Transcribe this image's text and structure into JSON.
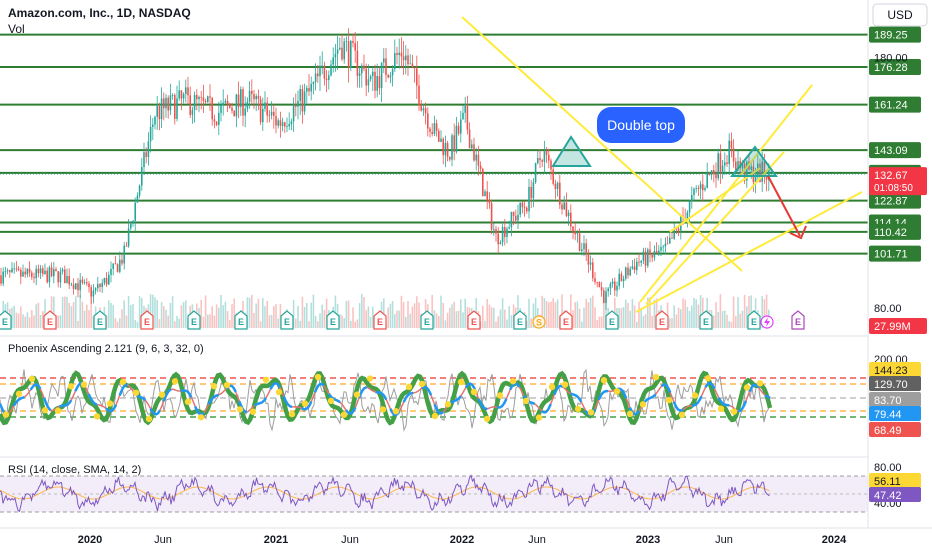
{
  "header": {
    "symbol_title": "Amazon.com, Inc., 1D, NASDAQ",
    "vol_label": "Vol",
    "currency_button": "USD"
  },
  "annotation": {
    "double_top_label": "Double top"
  },
  "colors": {
    "support_line": "#2e7d32",
    "trend_line": "#ffeb3b",
    "projection_arrow": "#e53935",
    "candle_up": "#26a69a",
    "candle_down": "#ef5350",
    "price_badge": "#f23645",
    "rsi_line": "#7e57c2",
    "rsi_band": "#ede7f6"
  },
  "chart_data": [
    {
      "type": "candlestick",
      "title": "Amazon.com, Inc., 1D, NASDAQ",
      "ylim": [
        78,
        195
      ],
      "x_ticks": [
        "2020",
        "Jun",
        "2021",
        "Jun",
        "2022",
        "Jun",
        "2023",
        "Jun",
        "2024"
      ],
      "support_levels": [
        189.25,
        176.28,
        161.24,
        143.09,
        133.97,
        122.87,
        114.14,
        110.42,
        101.71
      ],
      "last_price": 132.67,
      "countdown": "01:08:50",
      "axis_labels": [
        "180.00",
        "80.00"
      ],
      "volume_label": "27.99M",
      "earnings_markers": [
        "E",
        "E",
        "E",
        "E",
        "E",
        "E",
        "E",
        "E",
        "E",
        "E",
        "E",
        "E",
        "E",
        "E",
        "E",
        "E",
        "E"
      ],
      "dividend_marker": "S",
      "future_earnings_marker": "E",
      "series": [
        {
          "name": "Vol",
          "anchors": [
            [
              "2020-01",
              93
            ],
            [
              "2020-03",
              86
            ],
            [
              "2020-04",
              92
            ],
            [
              "2020-05",
              101
            ],
            [
              "2020-07",
              158
            ],
            [
              "2020-09",
              163
            ],
            [
              "2020-11",
              158
            ],
            [
              "2021-01",
              163
            ],
            [
              "2021-03",
              154
            ],
            [
              "2021-05",
              166
            ],
            [
              "2021-07",
              186
            ],
            [
              "2021-09",
              170
            ],
            [
              "2021-11",
              183
            ],
            [
              "2022-01",
              150
            ],
            [
              "2022-02",
              142
            ],
            [
              "2022-03",
              156
            ],
            [
              "2022-05",
              108
            ],
            [
              "2022-07",
              122
            ],
            [
              "2022-08",
              143
            ],
            [
              "2022-10",
              112
            ],
            [
              "2022-12",
              84
            ],
            [
              "2023-02",
              98
            ],
            [
              "2023-04",
              103
            ],
            [
              "2023-06",
              127
            ],
            [
              "2023-08",
              143
            ],
            [
              "2023-09",
              134
            ]
          ]
        }
      ]
    },
    {
      "type": "line",
      "title": "Phoenix Ascending 2.121 (9, 6, 3, 32, 0)",
      "tick_labels": [
        "200.00"
      ],
      "value_labels": [
        "144.23",
        "129.70",
        "83.70",
        "79.44",
        "68.49"
      ],
      "ylim": [
        40,
        210
      ]
    },
    {
      "type": "line",
      "title": "RSI (14, close, SMA, 14, 2)",
      "tick_labels": [
        "80.00",
        "40.00"
      ],
      "value_labels": [
        "56.11",
        "47.42"
      ],
      "ylim": [
        20,
        85
      ],
      "band": [
        30,
        70
      ]
    }
  ]
}
